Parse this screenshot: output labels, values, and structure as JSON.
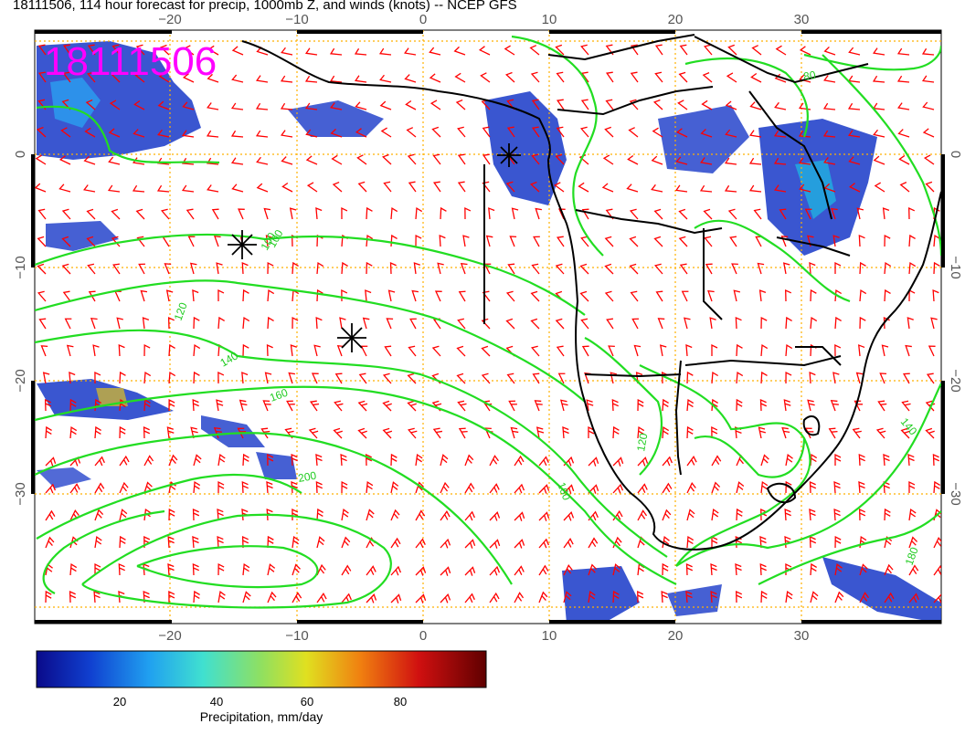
{
  "header": {
    "title": "18111506, 114 hour forecast for precip, 1000mb Z, and winds (knots) -- NCEP GFS"
  },
  "map": {
    "stamp": "18111506",
    "stamp_color": "#ff00ff",
    "x_ticks": [
      "−20",
      "−10",
      "0",
      "10",
      "20",
      "30"
    ],
    "y_ticks": [
      "0",
      "−10",
      "−20",
      "−30"
    ],
    "contour_labels": [
      "80",
      "100",
      "120",
      "140",
      "160",
      "160",
      "180",
      "200",
      "140",
      "120",
      "100"
    ],
    "colors": {
      "wind_barbs": "#ff0000",
      "contours": "#22dd22",
      "grid": "#ffb000",
      "coast": "#000000"
    },
    "markers": [
      "asterisk",
      "asterisk",
      "asterisk"
    ]
  },
  "colorbar": {
    "ticks": [
      "20",
      "40",
      "60",
      "80"
    ],
    "label": "Precipitation, mm/day",
    "colormap": [
      "#0a0a8a",
      "#1040d0",
      "#20a0f0",
      "#40e0d0",
      "#90e060",
      "#e0e020",
      "#f08010",
      "#d01010",
      "#600000"
    ]
  }
}
